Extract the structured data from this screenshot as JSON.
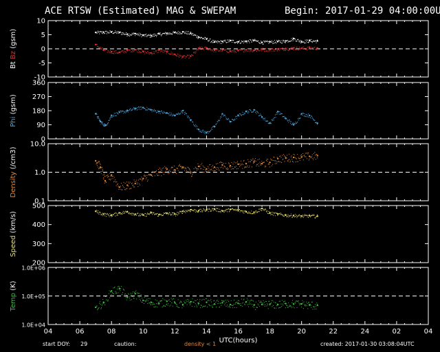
{
  "header": {
    "title": "ACE RTSW (Estimated) MAG & SWEPAM",
    "begin": "Begin: 2017-01-29 04:00:00UTC"
  },
  "footer": {
    "start_label": "start DOY:",
    "start_value": "29",
    "caution_label": "caution:",
    "density_caution": "density < 1",
    "created": "created: 2017-01-30 03:08:04UTC"
  },
  "colors": {
    "bt": "#ffffff",
    "bz": "#e03030",
    "phi": "#4aa8e0",
    "density": "#e08a3c",
    "speed": "#e8e070",
    "temp": "#40c040",
    "caution": "#e08a3c"
  },
  "chart_data": {
    "type": "scatter",
    "xlabel": "UTC(hours)",
    "x_ticks": [
      "04",
      "06",
      "08",
      "10",
      "12",
      "14",
      "16",
      "18",
      "20",
      "22",
      "24",
      "02",
      "04"
    ],
    "panels": [
      {
        "id": "mag",
        "ylabel_parts": [
          {
            "text": "Bt",
            "color": "bt"
          },
          {
            "text": "Bz",
            "color": "bz"
          },
          {
            "text": "(gsm)",
            "color": "bt"
          }
        ],
        "ylim": [
          -10,
          10
        ],
        "ticks": [
          "10",
          "5",
          "0",
          "-5",
          "-10"
        ],
        "tick_values": [
          10,
          5,
          0,
          -5,
          -10
        ],
        "dashed_y": 0,
        "series": [
          {
            "key": "bt",
            "color": "bt",
            "points": [
              [
                7,
                5.8
              ],
              [
                7.5,
                5.9
              ],
              [
                8,
                6.0
              ],
              [
                8.5,
                5.8
              ],
              [
                9,
                5.2
              ],
              [
                9.5,
                5.4
              ],
              [
                10,
                4.8
              ],
              [
                10.5,
                4.7
              ],
              [
                11,
                5.3
              ],
              [
                11.5,
                5.5
              ],
              [
                12,
                5.8
              ],
              [
                12.5,
                6.0
              ],
              [
                13,
                5.5
              ],
              [
                13.5,
                4.2
              ],
              [
                14,
                3.5
              ],
              [
                14.5,
                2.4
              ],
              [
                15,
                2.6
              ],
              [
                15.5,
                2.9
              ],
              [
                16,
                2.5
              ],
              [
                16.5,
                2.7
              ],
              [
                17,
                3.0
              ],
              [
                17.5,
                2.3
              ],
              [
                18,
                2.5
              ],
              [
                18.5,
                2.6
              ],
              [
                19,
                2.8
              ],
              [
                19.5,
                3.6
              ],
              [
                20,
                2.6
              ],
              [
                20.5,
                2.9
              ],
              [
                21,
                2.8
              ]
            ]
          },
          {
            "key": "bz",
            "color": "bz",
            "points": [
              [
                7,
                1.5
              ],
              [
                7.5,
                -0.5
              ],
              [
                8,
                -1.0
              ],
              [
                8.5,
                -1.2
              ],
              [
                9,
                -0.6
              ],
              [
                9.5,
                -0.3
              ],
              [
                10,
                -1.0
              ],
              [
                10.5,
                -1.5
              ],
              [
                11,
                -0.5
              ],
              [
                11.5,
                -1.1
              ],
              [
                12,
                -2.0
              ],
              [
                12.5,
                -2.8
              ],
              [
                13,
                -2.6
              ],
              [
                13.5,
                0.2
              ],
              [
                14,
                0.3
              ],
              [
                14.5,
                -0.5
              ],
              [
                15,
                -0.4
              ],
              [
                15.5,
                -0.8
              ],
              [
                16,
                -0.6
              ],
              [
                16.5,
                -0.3
              ],
              [
                17,
                -0.5
              ],
              [
                17.5,
                -0.2
              ],
              [
                18,
                -0.3
              ],
              [
                18.5,
                -0.1
              ],
              [
                19,
                0.1
              ],
              [
                19.5,
                0.3
              ],
              [
                20,
                0.2
              ],
              [
                20.5,
                0.4
              ],
              [
                21,
                0.3
              ]
            ]
          }
        ]
      },
      {
        "id": "phi",
        "ylabel_parts": [
          {
            "text": "Phi",
            "color": "phi"
          },
          {
            "text": "(gsm)",
            "color": "bt"
          }
        ],
        "ylim": [
          0,
          360
        ],
        "ticks": [
          "360",
          "270",
          "180",
          "90",
          "0"
        ],
        "tick_values": [
          360,
          270,
          180,
          90,
          0
        ],
        "series": [
          {
            "key": "phi",
            "color": "phi",
            "points": [
              [
                7,
                160
              ],
              [
                7.3,
                110
              ],
              [
                7.6,
                85
              ],
              [
                8,
                150
              ],
              [
                8.5,
                170
              ],
              [
                9,
                180
              ],
              [
                9.5,
                195
              ],
              [
                10,
                200
              ],
              [
                10.5,
                185
              ],
              [
                11,
                175
              ],
              [
                11.5,
                165
              ],
              [
                12,
                150
              ],
              [
                12.5,
                180
              ],
              [
                13,
                120
              ],
              [
                13.5,
                60
              ],
              [
                14,
                40
              ],
              [
                14.5,
                80
              ],
              [
                15,
                160
              ],
              [
                15.5,
                110
              ],
              [
                16,
                150
              ],
              [
                16.5,
                175
              ],
              [
                17,
                185
              ],
              [
                17.5,
                140
              ],
              [
                18,
                100
              ],
              [
                18.5,
                175
              ],
              [
                19,
                130
              ],
              [
                19.5,
                90
              ],
              [
                20,
                160
              ],
              [
                20.5,
                150
              ],
              [
                21,
                100
              ]
            ]
          }
        ]
      },
      {
        "id": "density",
        "ylabel_parts": [
          {
            "text": "Density",
            "color": "density"
          },
          {
            "text": "(/cm3)",
            "color": "bt"
          }
        ],
        "scale": "log",
        "ylim": [
          0.1,
          10
        ],
        "ticks": [
          "10.0",
          "1.0",
          "0.1"
        ],
        "tick_values": [
          10,
          1,
          0.1
        ],
        "dashed_y": 1.0,
        "series": [
          {
            "key": "density",
            "color": "density",
            "points": [
              [
                7,
                2.5
              ],
              [
                7.3,
                1.5
              ],
              [
                7.6,
                0.5
              ],
              [
                8,
                0.8
              ],
              [
                8.5,
                0.3
              ],
              [
                9,
                0.35
              ],
              [
                9.5,
                0.4
              ],
              [
                10,
                0.6
              ],
              [
                10.5,
                0.8
              ],
              [
                11,
                1.0
              ],
              [
                11.5,
                1.3
              ],
              [
                12,
                1.2
              ],
              [
                12.5,
                1.5
              ],
              [
                13,
                1.0
              ],
              [
                13.5,
                1.6
              ],
              [
                14,
                1.3
              ],
              [
                14.5,
                1.5
              ],
              [
                15,
                1.8
              ],
              [
                15.5,
                1.7
              ],
              [
                16,
                1.9
              ],
              [
                16.5,
                2.0
              ],
              [
                17,
                2.3
              ],
              [
                17.5,
                2.0
              ],
              [
                18,
                2.2
              ],
              [
                18.5,
                3.0
              ],
              [
                19,
                3.2
              ],
              [
                19.5,
                3.3
              ],
              [
                20,
                3.4
              ],
              [
                20.5,
                3.6
              ],
              [
                21,
                3.8
              ]
            ]
          }
        ]
      },
      {
        "id": "speed",
        "ylabel_parts": [
          {
            "text": "Speed",
            "color": "speed"
          },
          {
            "text": "(km/s)",
            "color": "bt"
          }
        ],
        "ylim": [
          200,
          500
        ],
        "ticks": [
          "500",
          "400",
          "300",
          "200"
        ],
        "tick_values": [
          500,
          400,
          300,
          200
        ],
        "series": [
          {
            "key": "speed",
            "color": "speed",
            "points": [
              [
                7,
                470
              ],
              [
                7.5,
                455
              ],
              [
                8,
                450
              ],
              [
                8.5,
                462
              ],
              [
                9,
                468
              ],
              [
                9.5,
                455
              ],
              [
                10,
                450
              ],
              [
                10.5,
                462
              ],
              [
                11,
                452
              ],
              [
                11.5,
                460
              ],
              [
                12,
                455
              ],
              [
                12.5,
                470
              ],
              [
                13,
                478
              ],
              [
                13.5,
                473
              ],
              [
                14,
                478
              ],
              [
                14.5,
                482
              ],
              [
                15,
                472
              ],
              [
                15.5,
                480
              ],
              [
                16,
                476
              ],
              [
                16.5,
                468
              ],
              [
                17,
                465
              ],
              [
                17.5,
                485
              ],
              [
                18,
                460
              ],
              [
                18.5,
                455
              ],
              [
                19,
                450
              ],
              [
                19.5,
                448
              ],
              [
                20,
                445
              ],
              [
                20.5,
                447
              ],
              [
                21,
                444
              ]
            ]
          }
        ]
      },
      {
        "id": "temp",
        "ylabel_parts": [
          {
            "text": "Temp",
            "color": "temp"
          },
          {
            "text": "(K)",
            "color": "bt"
          }
        ],
        "scale": "log",
        "ylim": [
          10000,
          1000000
        ],
        "ticks": [
          "1.0E+06",
          "1.0E+05",
          "1.0E+04"
        ],
        "tick_values": [
          1000000,
          100000,
          10000
        ],
        "dashed_y": 100000,
        "series": [
          {
            "key": "temp",
            "color": "temp",
            "points": [
              [
                7,
                40000
              ],
              [
                7.5,
                60000
              ],
              [
                8,
                150000
              ],
              [
                8.5,
                180000
              ],
              [
                9,
                90000
              ],
              [
                9.5,
                120000
              ],
              [
                10,
                70000
              ],
              [
                10.5,
                60000
              ],
              [
                11,
                55000
              ],
              [
                11.5,
                65000
              ],
              [
                12,
                58000
              ],
              [
                12.5,
                50000
              ],
              [
                13,
                62000
              ],
              [
                13.5,
                55000
              ],
              [
                14,
                60000
              ],
              [
                14.5,
                52000
              ],
              [
                15,
                58000
              ],
              [
                15.5,
                50000
              ],
              [
                16,
                55000
              ],
              [
                16.5,
                62000
              ],
              [
                17,
                48000
              ],
              [
                17.5,
                50000
              ],
              [
                18,
                52000
              ],
              [
                18.5,
                50000
              ],
              [
                19,
                54000
              ],
              [
                19.5,
                52000
              ],
              [
                20,
                53000
              ],
              [
                20.5,
                48000
              ],
              [
                21,
                47000
              ]
            ]
          }
        ]
      }
    ]
  }
}
